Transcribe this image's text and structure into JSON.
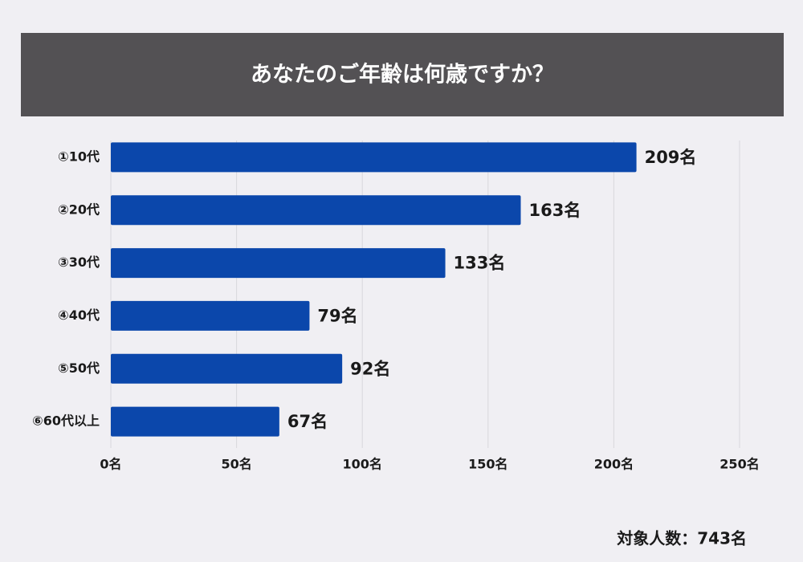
{
  "chart_data": {
    "type": "bar",
    "orientation": "horizontal",
    "title": "あなたのご年齢は何歳ですか？",
    "categories": [
      "①10代",
      "②20代",
      "③30代",
      "④40代",
      "⑤50代",
      "⑥60代以上"
    ],
    "values": [
      209,
      163,
      133,
      79,
      92,
      67
    ],
    "value_labels": [
      "209名",
      "163名",
      "133名",
      "79名",
      "92名",
      "67名"
    ],
    "color": "#0b47ab",
    "xlim": [
      0,
      250
    ],
    "xticks": [
      {
        "value": 0,
        "label": "0名"
      },
      {
        "value": 50,
        "label": "50名"
      },
      {
        "value": 100,
        "label": "100名"
      },
      {
        "value": 150,
        "label": "150名"
      },
      {
        "value": 200,
        "label": "200名"
      },
      {
        "value": 250,
        "label": "250名"
      }
    ],
    "grid": true,
    "annotation": "対象人数：743名"
  }
}
